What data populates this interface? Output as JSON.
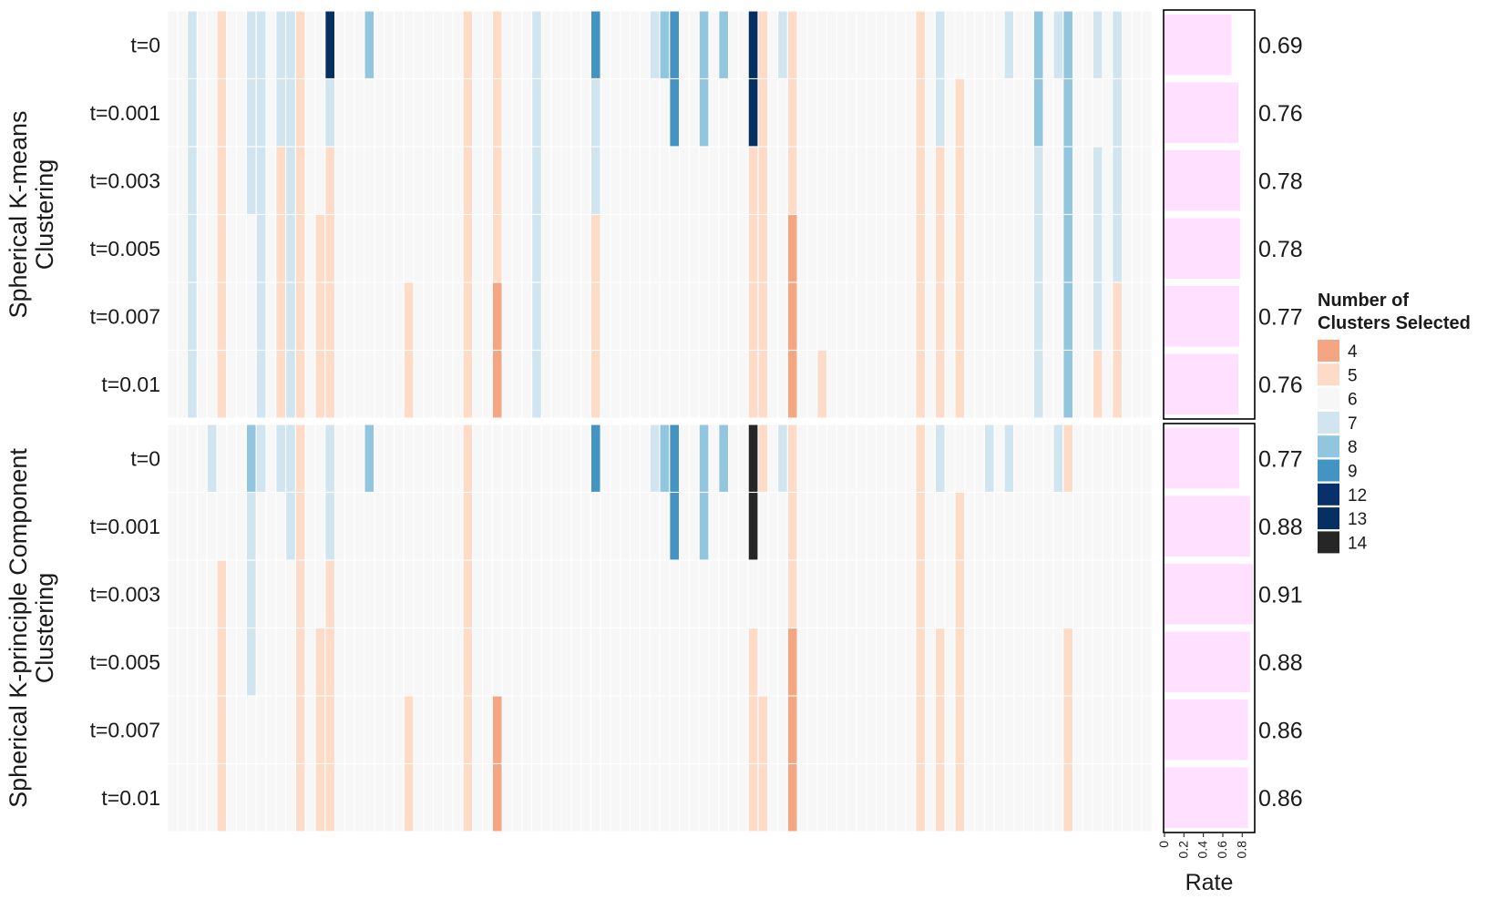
{
  "chart_data": {
    "type": "heatmap",
    "facets": [
      {
        "name": "Spherical K-means Clustering",
        "label_lines": [
          "Spherical K-means",
          "Clustering"
        ]
      },
      {
        "name": "Spherical K-principle Component Clustering",
        "label_lines": [
          "Spherical K-principle Component",
          "Clustering"
        ]
      }
    ],
    "row_labels": [
      "t=0",
      "t=0.001",
      "t=0.003",
      "t=0.005",
      "t=0.007",
      "t=0.01"
    ],
    "n_columns": 100,
    "default_value": 6,
    "cells": [
      {
        "facet": 0,
        "row": 0,
        "cols": {
          "2": 7,
          "5": 5,
          "8": 7,
          "9": 7,
          "11": 7,
          "12": 7,
          "13": 5,
          "16": 13,
          "20": 8,
          "30": 5,
          "33": 5,
          "37": 7,
          "43": 9,
          "49": 7,
          "50": 8,
          "51": 9,
          "54": 8,
          "56": 8,
          "59": 13,
          "60": 5,
          "62": 7,
          "63": 5,
          "76": 5,
          "78": 7,
          "85": 7,
          "88": 8,
          "90": 7,
          "91": 8,
          "94": 7,
          "96": 7
        }
      },
      {
        "facet": 0,
        "row": 1,
        "cols": {
          "2": 7,
          "5": 5,
          "8": 7,
          "9": 7,
          "11": 7,
          "12": 7,
          "13": 5,
          "16": 7,
          "30": 5,
          "33": 5,
          "37": 7,
          "43": 7,
          "51": 9,
          "54": 8,
          "59": 13,
          "60": 5,
          "63": 5,
          "76": 5,
          "78": 7,
          "80": 5,
          "88": 8,
          "91": 8,
          "96": 7
        }
      },
      {
        "facet": 0,
        "row": 2,
        "cols": {
          "2": 7,
          "5": 5,
          "8": 7,
          "9": 7,
          "11": 5,
          "12": 7,
          "13": 5,
          "16": 5,
          "30": 5,
          "33": 5,
          "37": 7,
          "43": 7,
          "59": 5,
          "60": 5,
          "63": 5,
          "76": 5,
          "78": 5,
          "80": 5,
          "88": 7,
          "91": 8,
          "94": 7,
          "96": 7
        }
      },
      {
        "facet": 0,
        "row": 3,
        "cols": {
          "2": 7,
          "5": 5,
          "9": 7,
          "11": 5,
          "12": 7,
          "13": 5,
          "15": 5,
          "16": 5,
          "30": 5,
          "33": 5,
          "37": 7,
          "43": 5,
          "59": 5,
          "60": 5,
          "63": 4,
          "76": 5,
          "78": 5,
          "80": 5,
          "88": 7,
          "91": 8,
          "94": 7,
          "96": 7
        }
      },
      {
        "facet": 0,
        "row": 4,
        "cols": {
          "2": 7,
          "5": 5,
          "9": 7,
          "11": 5,
          "12": 7,
          "13": 5,
          "15": 5,
          "16": 5,
          "24": 5,
          "30": 5,
          "33": 4,
          "37": 7,
          "43": 5,
          "59": 5,
          "60": 5,
          "63": 4,
          "76": 5,
          "78": 5,
          "80": 5,
          "88": 7,
          "91": 8,
          "94": 7,
          "96": 5
        }
      },
      {
        "facet": 0,
        "row": 5,
        "cols": {
          "2": 7,
          "5": 5,
          "9": 7,
          "11": 5,
          "12": 7,
          "13": 5,
          "15": 5,
          "16": 5,
          "24": 5,
          "30": 5,
          "33": 4,
          "37": 7,
          "43": 5,
          "59": 5,
          "60": 5,
          "63": 4,
          "66": 5,
          "76": 5,
          "78": 5,
          "80": 5,
          "88": 7,
          "91": 8,
          "94": 5,
          "96": 5
        }
      },
      {
        "facet": 1,
        "row": 0,
        "cols": {
          "4": 7,
          "8": 8,
          "9": 7,
          "11": 7,
          "12": 7,
          "13": 5,
          "16": 7,
          "20": 8,
          "30": 5,
          "43": 9,
          "49": 7,
          "50": 8,
          "51": 9,
          "54": 8,
          "56": 8,
          "59": 14,
          "60": 5,
          "62": 7,
          "63": 5,
          "76": 5,
          "78": 7,
          "83": 7,
          "85": 7,
          "90": 7,
          "91": 5
        }
      },
      {
        "facet": 1,
        "row": 1,
        "cols": {
          "8": 7,
          "12": 7,
          "13": 5,
          "16": 7,
          "30": 5,
          "51": 9,
          "54": 8,
          "59": 14,
          "63": 5,
          "76": 5,
          "80": 5
        }
      },
      {
        "facet": 1,
        "row": 2,
        "cols": {
          "5": 5,
          "8": 7,
          "13": 5,
          "16": 5,
          "30": 5,
          "63": 5,
          "76": 5,
          "80": 5
        }
      },
      {
        "facet": 1,
        "row": 3,
        "cols": {
          "5": 5,
          "8": 7,
          "13": 5,
          "15": 5,
          "16": 5,
          "30": 5,
          "59": 5,
          "63": 4,
          "76": 5,
          "78": 5,
          "80": 5,
          "91": 5
        }
      },
      {
        "facet": 1,
        "row": 4,
        "cols": {
          "5": 5,
          "13": 5,
          "15": 5,
          "16": 5,
          "24": 5,
          "30": 5,
          "33": 4,
          "59": 5,
          "60": 5,
          "63": 4,
          "76": 5,
          "78": 5,
          "80": 5,
          "91": 5
        }
      },
      {
        "facet": 1,
        "row": 5,
        "cols": {
          "5": 5,
          "13": 5,
          "15": 5,
          "16": 5,
          "24": 5,
          "30": 5,
          "33": 4,
          "59": 5,
          "60": 5,
          "63": 4,
          "76": 5,
          "78": 5,
          "80": 5,
          "91": 5
        }
      }
    ],
    "rates": [
      [
        0.69,
        0.76,
        0.78,
        0.78,
        0.77,
        0.76
      ],
      [
        0.77,
        0.88,
        0.91,
        0.88,
        0.86,
        0.86
      ]
    ],
    "rate_axis": {
      "label": "Rate",
      "ticks": [
        "0",
        "0.2",
        "0.4",
        "0.6",
        "0.8"
      ],
      "tick_values": [
        0,
        0.2,
        0.4,
        0.6,
        0.8
      ],
      "xlim": [
        0,
        0.91
      ]
    },
    "legend": {
      "title_lines": [
        "Number of",
        "Clusters Selected"
      ],
      "placement": "right",
      "entries": [
        {
          "label": "4",
          "color": "#F4A582"
        },
        {
          "label": "5",
          "color": "#FDDBC7"
        },
        {
          "label": "6",
          "color": "#F7F7F7"
        },
        {
          "label": "7",
          "color": "#D1E5F0"
        },
        {
          "label": "8",
          "color": "#92C5DE"
        },
        {
          "label": "9",
          "color": "#4393C3"
        },
        {
          "label": "12",
          "color": "#08306B"
        },
        {
          "label": "13",
          "color": "#053061"
        },
        {
          "label": "14",
          "color": "#262626"
        }
      ]
    },
    "bar_color": "#FFE0FF"
  }
}
